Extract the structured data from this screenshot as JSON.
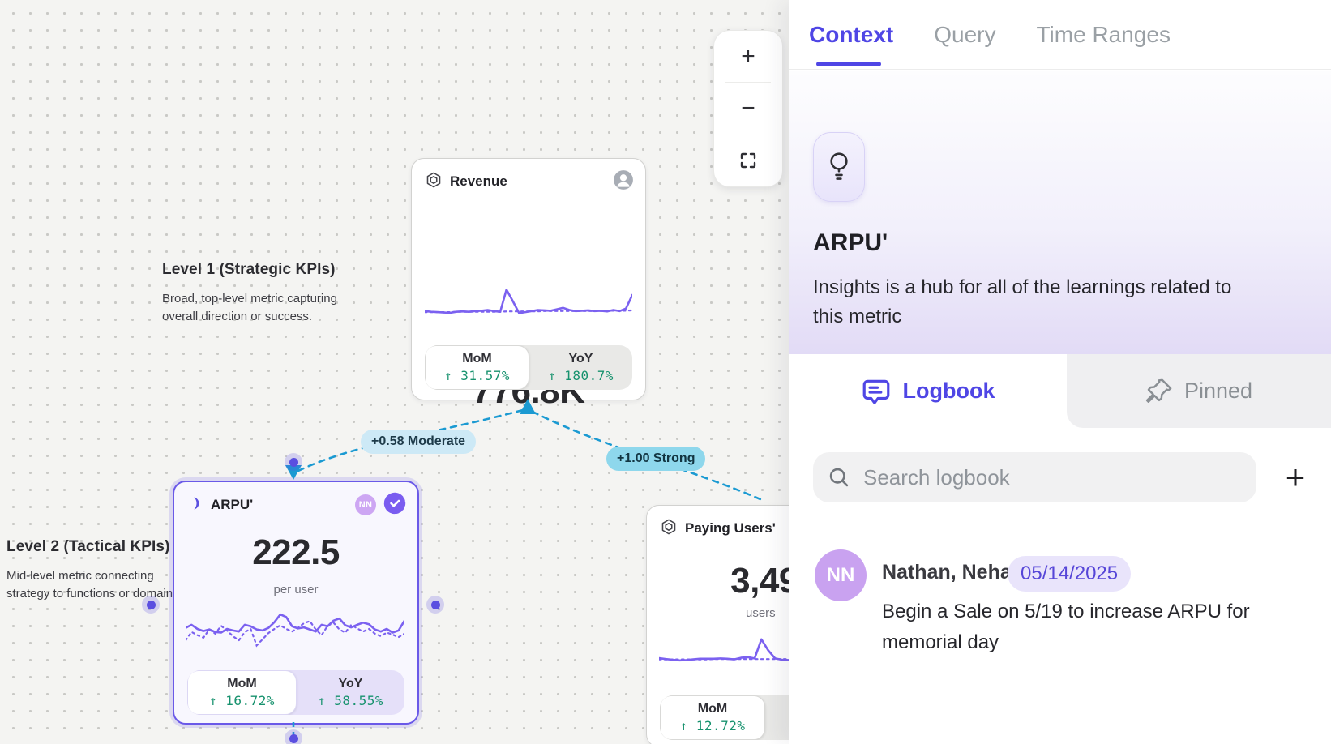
{
  "canvas": {
    "zoom_toolbar": {
      "zoom_in_label": "+",
      "zoom_out_label": "−"
    },
    "levels": [
      {
        "title": "Level 1 (Strategic KPIs)",
        "description_lines": [
          "Broad, top-level metric capturing",
          "overall direction or success."
        ]
      },
      {
        "title": "Level 2 (Tactical KPIs)",
        "description_lines": [
          "Mid-level metric connecting",
          "strategy to functions or domains."
        ]
      }
    ],
    "edges": [
      {
        "label": "+0.58 Moderate",
        "strength": "moderate"
      },
      {
        "label": "+1.00 Strong",
        "strength": "strong"
      }
    ],
    "cards": {
      "revenue": {
        "title": "Revenue",
        "value": "776.8K",
        "mom_label": "MoM",
        "mom_value": "↑ 31.57%",
        "yoy_label": "YoY",
        "yoy_value": "↑ 180.7%",
        "sparkline": {
          "solid": [
            30,
            28,
            27,
            26,
            25,
            28,
            29,
            28,
            30,
            31,
            33,
            30,
            28,
            90,
            58,
            24,
            27,
            30,
            33,
            32,
            31,
            35,
            39,
            33,
            30,
            31,
            32,
            30,
            31,
            29,
            33,
            30,
            37,
            75
          ],
          "dotted": [
            27,
            27,
            27,
            27,
            27,
            28,
            28,
            28,
            28,
            28,
            28,
            28,
            28,
            29,
            29,
            29,
            29,
            29,
            29,
            30,
            30,
            30,
            30,
            30,
            30,
            30,
            30,
            30,
            30,
            31,
            31,
            31,
            31,
            32
          ]
        }
      },
      "arpu": {
        "title": "ARPU'",
        "value": "222.5",
        "unit": "per user",
        "owner_initials": "NN",
        "mom_label": "MoM",
        "mom_value": "↑ 16.72%",
        "yoy_label": "YoY",
        "yoy_value": "↑ 58.55%",
        "sparkline": {
          "solid": [
            52,
            58,
            50,
            46,
            49,
            44,
            43,
            50,
            47,
            45,
            58,
            55,
            49,
            47,
            52,
            63,
            78,
            73,
            55,
            51,
            53,
            49,
            45,
            58,
            55,
            66,
            70,
            57,
            53,
            58,
            62,
            59,
            49,
            45,
            50,
            43,
            47,
            66
          ],
          "dotted": [
            28,
            44,
            38,
            33,
            49,
            41,
            56,
            47,
            36,
            28,
            44,
            50,
            18,
            30,
            42,
            50,
            57,
            50,
            45,
            52,
            61,
            65,
            49,
            38,
            56,
            62,
            49,
            43,
            58,
            51,
            45,
            50,
            41,
            36,
            43,
            39,
            34,
            41
          ]
        }
      },
      "paying": {
        "title": "Paying Users'",
        "value_visible": "3,49",
        "unit": "users",
        "mom_label": "MoM",
        "mom_value": "↑ 12.72%",
        "sparkline": {
          "solid": [
            30,
            27,
            25,
            23,
            24,
            26,
            28,
            28,
            28,
            29,
            28,
            26,
            31,
            33,
            29,
            88,
            54,
            29,
            25,
            24
          ],
          "dotted": [
            26,
            26,
            26,
            26,
            26,
            26,
            26,
            26,
            27,
            27,
            27,
            27,
            27,
            27,
            27,
            27,
            27,
            27,
            27,
            27
          ]
        }
      }
    }
  },
  "panel": {
    "tabs": [
      {
        "label": "Context",
        "active": true
      },
      {
        "label": "Query",
        "active": false
      },
      {
        "label": "Time Ranges",
        "active": false
      }
    ],
    "hero": {
      "title": "ARPU'",
      "description_lines": [
        "Insights is a hub for all of the learnings related to",
        "this metric"
      ]
    },
    "subtabs": [
      {
        "label": "Logbook",
        "active": true
      },
      {
        "label": "Pinned",
        "active": false
      }
    ],
    "search": {
      "placeholder": "Search logbook",
      "add_button": "+"
    },
    "logbook_entries": [
      {
        "avatar_initials": "NN",
        "author": "Nathan, Neha",
        "date": "05/14/2025",
        "body_lines": [
          "Begin a Sale on 5/19 to increase ARPU for",
          "memorial day"
        ]
      }
    ]
  },
  "colors": {
    "accent_indigo": "#4f46e5",
    "spark_purple": "#7b61f0",
    "positive_green": "#17926e",
    "edge_blue": "#1b9ad2",
    "edge_label_moderate_bg": "#cde9f6",
    "edge_label_strong_bg": "#8ed7ec",
    "selected_card_border": "#6a59e8",
    "avatar_purple": "#c9a2f0",
    "date_badge_bg": "#e9e4fb",
    "date_badge_text": "#5646d8"
  }
}
